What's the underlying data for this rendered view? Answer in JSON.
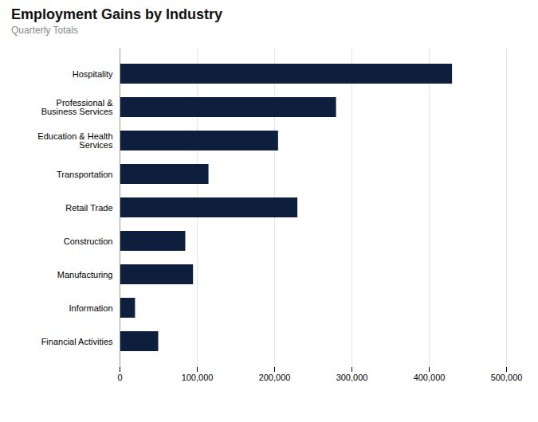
{
  "chart_data": {
    "type": "bar",
    "orientation": "horizontal",
    "title": "Employment Gains by Industry",
    "subtitle": "Quarterly Totals",
    "categories": [
      "Financial Activities",
      "Information",
      "Manufacturing",
      "Construction",
      "Retail Trade",
      "Transportation",
      "Education & Health\nServices",
      "Professional &\nBusiness Services",
      "Hospitality"
    ],
    "values": [
      50000,
      20000,
      95000,
      85000,
      230000,
      115000,
      205000,
      280000,
      430000
    ],
    "color": "#0d1f3c",
    "xlim": [
      0,
      500000
    ],
    "xticks": [
      0,
      {
        "value": 100000,
        "label": "100,000"
      },
      {
        "value": 200000,
        "label": "200,000"
      },
      {
        "value": 300000,
        "label": "300,000"
      },
      {
        "value": 400000,
        "label": "400,000"
      },
      {
        "value": 500000,
        "label": "500,000"
      }
    ],
    "grid": true
  }
}
